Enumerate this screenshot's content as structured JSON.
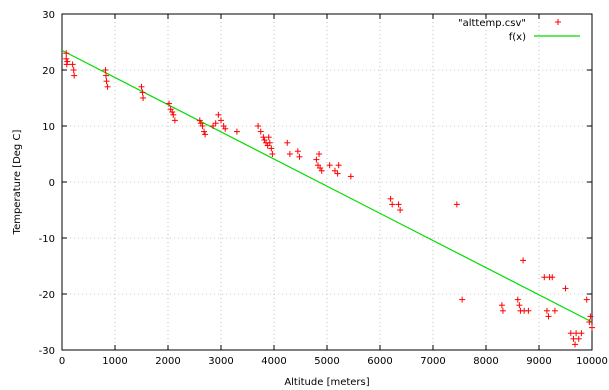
{
  "chart_data": {
    "type": "scatter",
    "title": "",
    "xlabel": "Altitude [meters]",
    "ylabel": "Temperature [Deg C]",
    "xlim": [
      0,
      10000
    ],
    "ylim": [
      -30,
      30
    ],
    "xticks": [
      "0",
      "1000",
      "2000",
      "3000",
      "4000",
      "5000",
      "6000",
      "7000",
      "8000",
      "9000",
      "10000"
    ],
    "yticks": [
      "30",
      "20",
      "10",
      "0",
      "-10",
      "-20",
      "-30"
    ],
    "grid": true,
    "legend_position": "top-right",
    "series": [
      {
        "name": "\"alttemp.csv\"",
        "kind": "points",
        "marker": "plus",
        "color": "#ff0000",
        "points": [
          [
            80,
            23
          ],
          [
            80,
            22
          ],
          [
            90,
            21
          ],
          [
            100,
            21.5
          ],
          [
            200,
            21
          ],
          [
            220,
            20
          ],
          [
            230,
            19
          ],
          [
            820,
            20
          ],
          [
            830,
            19
          ],
          [
            840,
            18
          ],
          [
            860,
            17
          ],
          [
            1500,
            17
          ],
          [
            1520,
            16
          ],
          [
            1530,
            15
          ],
          [
            2020,
            14
          ],
          [
            2050,
            13
          ],
          [
            2080,
            12.5
          ],
          [
            2100,
            12
          ],
          [
            2130,
            11
          ],
          [
            2600,
            11
          ],
          [
            2620,
            10.5
          ],
          [
            2650,
            10
          ],
          [
            2680,
            9
          ],
          [
            2700,
            8.5
          ],
          [
            2850,
            10
          ],
          [
            2900,
            10.5
          ],
          [
            2950,
            12
          ],
          [
            3000,
            11
          ],
          [
            3050,
            10
          ],
          [
            3080,
            9.5
          ],
          [
            3300,
            9
          ],
          [
            3700,
            10
          ],
          [
            3750,
            9
          ],
          [
            3800,
            8
          ],
          [
            3820,
            7.5
          ],
          [
            3850,
            7
          ],
          [
            3880,
            6.5
          ],
          [
            3900,
            8
          ],
          [
            3920,
            7
          ],
          [
            3950,
            6
          ],
          [
            3970,
            5
          ],
          [
            4250,
            7
          ],
          [
            4300,
            5
          ],
          [
            4450,
            5.5
          ],
          [
            4480,
            4.5
          ],
          [
            4800,
            4
          ],
          [
            4830,
            3
          ],
          [
            4850,
            5
          ],
          [
            4870,
            2.5
          ],
          [
            4900,
            2
          ],
          [
            5050,
            3
          ],
          [
            5150,
            2
          ],
          [
            5200,
            1.5
          ],
          [
            5220,
            3
          ],
          [
            5450,
            1
          ],
          [
            6200,
            -3
          ],
          [
            6230,
            -4
          ],
          [
            6350,
            -4
          ],
          [
            6380,
            -5
          ],
          [
            7450,
            -4
          ],
          [
            7550,
            -21
          ],
          [
            8300,
            -22
          ],
          [
            8320,
            -23
          ],
          [
            8600,
            -21
          ],
          [
            8630,
            -22
          ],
          [
            8650,
            -23
          ],
          [
            8700,
            -14
          ],
          [
            8720,
            -23
          ],
          [
            8800,
            -23
          ],
          [
            9100,
            -17
          ],
          [
            9150,
            -23
          ],
          [
            9180,
            -24
          ],
          [
            9200,
            -17
          ],
          [
            9250,
            -17
          ],
          [
            9300,
            -23
          ],
          [
            9500,
            -19
          ],
          [
            9600,
            -27
          ],
          [
            9650,
            -28
          ],
          [
            9680,
            -29
          ],
          [
            9700,
            -27
          ],
          [
            9750,
            -28
          ],
          [
            9800,
            -27
          ],
          [
            9900,
            -21
          ],
          [
            9950,
            -25
          ],
          [
            9970,
            -24
          ],
          [
            10000,
            -26
          ]
        ]
      },
      {
        "name": "f(x)",
        "kind": "line",
        "color": "#00dd00",
        "points": [
          [
            0,
            23.5
          ],
          [
            10000,
            -25
          ]
        ]
      }
    ]
  }
}
